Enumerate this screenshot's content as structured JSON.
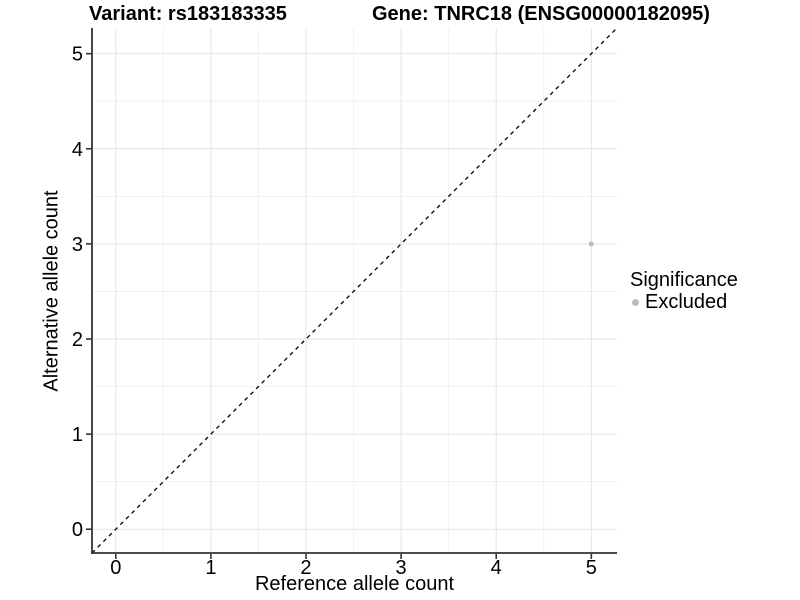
{
  "chart_data": {
    "type": "scatter",
    "titles": {
      "variant": "Variant: rs183183335",
      "gene": "Gene: TNRC18 (ENSG00000182095)"
    },
    "xlabel": "Reference allele count",
    "ylabel": "Alternative allele count",
    "xlim": [
      -0.25,
      5.27
    ],
    "ylim": [
      -0.25,
      5.27
    ],
    "xticks": [
      0,
      1,
      2,
      3,
      4,
      5
    ],
    "yticks": [
      0,
      1,
      2,
      3,
      4,
      5
    ],
    "minor_xticks": [
      0.5,
      1.5,
      2.5,
      3.5,
      4.5
    ],
    "minor_yticks": [
      0.5,
      1.5,
      2.5,
      3.5,
      4.5
    ],
    "grid": {
      "major": true,
      "minor": true
    },
    "identity_line": {
      "slope": 1,
      "intercept": 0,
      "style": "dashed",
      "color": "#000000"
    },
    "points": [
      {
        "x": 5,
        "y": 3,
        "significance": "Excluded"
      }
    ],
    "point_style": {
      "color": "#bdbdbd",
      "radius_px": 2.5
    },
    "legend": {
      "title": "Significance",
      "position": "right",
      "items": [
        {
          "label": "Excluded",
          "color": "#bdbdbd",
          "marker": "circle"
        }
      ]
    },
    "colors": {
      "grid_major": "#e4e4e4",
      "grid_minor": "#f1f1f1",
      "axis_line": "#333333",
      "tick": "#333333",
      "text": "#000000",
      "background": "#ffffff"
    }
  }
}
